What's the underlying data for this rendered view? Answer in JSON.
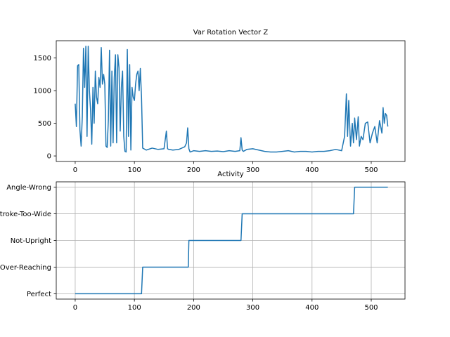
{
  "chart_data": [
    {
      "type": "line",
      "title": "Var Rotation Vector Z",
      "xlabel": "",
      "ylabel": "",
      "xlim": [
        -32,
        557
      ],
      "ylim": [
        -85,
        1765
      ],
      "xticks": [
        0,
        100,
        200,
        300,
        400,
        500
      ],
      "yticks": [
        0,
        500,
        1000,
        1500
      ],
      "grid": false,
      "color": "#1f77b4",
      "series": [
        {
          "x": [
            0,
            2,
            4,
            6,
            8,
            10,
            12,
            14,
            16,
            18,
            20,
            22,
            24,
            26,
            28,
            30,
            32,
            34,
            36,
            38,
            40,
            42,
            44,
            46,
            48,
            50,
            52,
            54,
            56,
            58,
            60,
            62,
            64,
            66,
            68,
            70,
            72,
            74,
            76,
            78,
            80,
            82,
            84,
            86,
            88,
            90,
            92,
            94,
            96,
            98,
            100,
            102,
            104,
            106,
            108,
            110,
            112,
            114,
            120,
            130,
            140,
            150,
            154,
            156,
            158,
            165,
            175,
            185,
            188,
            190,
            192,
            194,
            200,
            210,
            220,
            230,
            240,
            250,
            260,
            270,
            278,
            280,
            282,
            284,
            290,
            300,
            310,
            320,
            330,
            340,
            350,
            360,
            370,
            380,
            390,
            400,
            410,
            420,
            430,
            440,
            450,
            455,
            458,
            460,
            462,
            465,
            468,
            470,
            472,
            475,
            478,
            480,
            483,
            486,
            490,
            494,
            498,
            502,
            506,
            510,
            514,
            518,
            520,
            522,
            524,
            526,
            528
          ],
          "y": [
            800,
            450,
            1380,
            1400,
            400,
            150,
            600,
            1650,
            1050,
            1680,
            300,
            1680,
            1000,
            700,
            180,
            1050,
            500,
            1300,
            900,
            800,
            1200,
            1050,
            1660,
            1100,
            1250,
            1100,
            150,
            130,
            550,
            1620,
            150,
            1300,
            200,
            1200,
            1550,
            200,
            1550,
            1350,
            380,
            1050,
            1300,
            300,
            70,
            60,
            1630,
            300,
            1400,
            90,
            1050,
            900,
            850,
            1100,
            1250,
            1300,
            1000,
            1340,
            900,
            120,
            90,
            120,
            100,
            110,
            380,
            110,
            100,
            90,
            100,
            140,
            200,
            430,
            110,
            60,
            80,
            70,
            80,
            70,
            75,
            65,
            80,
            70,
            80,
            280,
            90,
            70,
            100,
            110,
            90,
            70,
            60,
            60,
            70,
            80,
            60,
            70,
            70,
            60,
            70,
            70,
            80,
            100,
            80,
            300,
            950,
            300,
            850,
            150,
            500,
            200,
            580,
            250,
            600,
            150,
            300,
            250,
            500,
            520,
            200,
            350,
            450,
            200,
            540,
            350,
            740,
            500,
            650,
            620,
            450
          ]
        }
      ]
    },
    {
      "type": "line",
      "title": "Activity",
      "xlabel": "",
      "ylabel": "",
      "xlim": [
        -32,
        557
      ],
      "ylim": [
        -0.2,
        4.2
      ],
      "xticks": [
        0,
        100,
        200,
        300,
        400,
        500
      ],
      "categories": [
        "Perfect",
        "Over-Reaching",
        "Not-Upright",
        "Stroke-Too-Wide",
        "Angle-Wrong"
      ],
      "grid": true,
      "color": "#1f77b4",
      "series": [
        {
          "x": [
            0,
            112,
            114,
            191,
            192,
            280,
            282,
            470,
            472,
            528
          ],
          "y": [
            0,
            0,
            1,
            1,
            2,
            2,
            3,
            3,
            4,
            4
          ]
        }
      ]
    }
  ]
}
